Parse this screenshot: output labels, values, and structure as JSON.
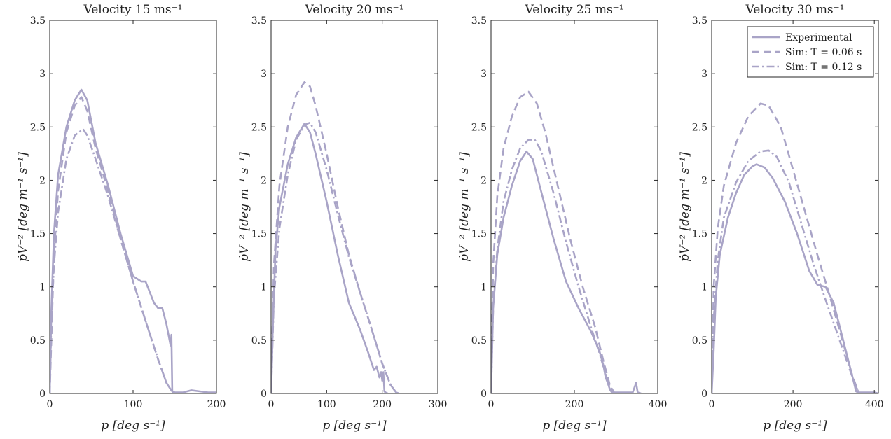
{
  "colors": {
    "series": "#a9a4c7",
    "axes": "#262626",
    "background": "#ffffff"
  },
  "legend": {
    "panel": 3,
    "location": "top-right",
    "entries": [
      {
        "label": "Experimental",
        "style": "solid"
      },
      {
        "label": "Sim: T = 0.06 s",
        "style": "dashed"
      },
      {
        "label": "Sim: T = 0.12 s",
        "style": "dashdot"
      }
    ]
  },
  "chart_data": [
    {
      "type": "line",
      "title": "Velocity 15 ms⁻¹",
      "xlabel": "p [deg s⁻¹]",
      "ylabel": "ṗV⁻² [deg m⁻¹ s⁻¹]",
      "xlim": [
        0,
        200
      ],
      "ylim": [
        0,
        3.5
      ],
      "xticks": [
        0,
        100,
        200
      ],
      "yticks": [
        0,
        0.5,
        1,
        1.5,
        2,
        2.5,
        3,
        3.5
      ],
      "grid": false,
      "series": [
        {
          "name": "Experimental",
          "style": "solid",
          "x": [
            0,
            2,
            5,
            10,
            20,
            30,
            38,
            45,
            55,
            70,
            85,
            100,
            110,
            115,
            120,
            125,
            130,
            135,
            140,
            145,
            146,
            147,
            150,
            160,
            170,
            180,
            190,
            200
          ],
          "y": [
            0,
            0.8,
            1.5,
            2.05,
            2.5,
            2.75,
            2.85,
            2.75,
            2.35,
            1.95,
            1.5,
            1.1,
            1.05,
            1.05,
            0.95,
            0.85,
            0.8,
            0.8,
            0.65,
            0.45,
            0.55,
            0.02,
            0.01,
            0.01,
            0.03,
            0.02,
            0.01,
            0.01
          ]
        },
        {
          "name": "Sim: T = 0.06 s",
          "style": "dashed",
          "x": [
            0,
            5,
            10,
            20,
            30,
            38,
            45,
            55,
            70,
            85,
            100,
            115,
            130,
            140,
            145,
            148,
            150
          ],
          "y": [
            0,
            1.3,
            1.9,
            2.45,
            2.7,
            2.78,
            2.65,
            2.3,
            1.9,
            1.45,
            1.05,
            0.68,
            0.32,
            0.1,
            0.04,
            0.01,
            0
          ]
        },
        {
          "name": "Sim: T = 0.12 s",
          "style": "dashdot",
          "x": [
            0,
            2,
            5,
            10,
            20,
            30,
            40,
            45,
            55,
            70,
            85,
            100,
            115,
            130,
            140,
            145,
            148,
            150
          ],
          "y": [
            0,
            0.7,
            1.2,
            1.7,
            2.2,
            2.42,
            2.48,
            2.42,
            2.2,
            1.85,
            1.45,
            1.05,
            0.68,
            0.32,
            0.1,
            0.04,
            0.01,
            0
          ]
        }
      ]
    },
    {
      "type": "line",
      "title": "Velocity 20 ms⁻¹",
      "xlabel": "p [deg s⁻¹]",
      "ylabel": "ṗV⁻² [deg m⁻¹ s⁻¹]",
      "xlim": [
        0,
        300
      ],
      "ylim": [
        0,
        3.5
      ],
      "xticks": [
        0,
        100,
        200,
        300
      ],
      "yticks": [
        0,
        0.5,
        1,
        1.5,
        2,
        2.5,
        3,
        3.5
      ],
      "grid": false,
      "series": [
        {
          "name": "Experimental",
          "style": "solid",
          "x": [
            0,
            3,
            8,
            15,
            30,
            45,
            60,
            70,
            80,
            100,
            120,
            140,
            160,
            175,
            185,
            190,
            195,
            198,
            200,
            202,
            204,
            206,
            210
          ],
          "y": [
            0,
            0.6,
            1.35,
            1.75,
            2.15,
            2.4,
            2.53,
            2.45,
            2.25,
            1.8,
            1.3,
            0.85,
            0.6,
            0.38,
            0.22,
            0.25,
            0.15,
            0.2,
            0.12,
            0.2,
            0.02,
            0.01,
            0
          ]
        },
        {
          "name": "Sim: T = 0.06 s",
          "style": "dashed",
          "x": [
            0,
            5,
            15,
            30,
            45,
            60,
            70,
            80,
            100,
            120,
            140,
            160,
            180,
            200,
            215,
            225,
            230
          ],
          "y": [
            0,
            1.2,
            1.95,
            2.5,
            2.8,
            2.92,
            2.88,
            2.7,
            2.25,
            1.75,
            1.3,
            0.95,
            0.62,
            0.28,
            0.08,
            0.01,
            0
          ]
        },
        {
          "name": "Sim: T = 0.12 s",
          "style": "dashdot",
          "x": [
            0,
            5,
            15,
            30,
            45,
            60,
            70,
            80,
            100,
            120,
            140,
            160,
            180,
            200,
            215,
            225,
            230
          ],
          "y": [
            0,
            0.9,
            1.55,
            2.05,
            2.38,
            2.52,
            2.54,
            2.45,
            2.1,
            1.68,
            1.28,
            0.95,
            0.62,
            0.28,
            0.08,
            0.01,
            0
          ]
        }
      ]
    },
    {
      "type": "line",
      "title": "Velocity 25 ms⁻¹",
      "xlabel": "p [deg s⁻¹]",
      "ylabel": "ṗV⁻² [deg m⁻¹ s⁻¹]",
      "xlim": [
        0,
        400
      ],
      "ylim": [
        0,
        3.5
      ],
      "xticks": [
        0,
        200,
        400
      ],
      "yticks": [
        0,
        0.5,
        1,
        1.5,
        2,
        2.5,
        3,
        3.5
      ],
      "grid": false,
      "series": [
        {
          "name": "Experimental",
          "style": "solid",
          "x": [
            0,
            5,
            15,
            30,
            50,
            70,
            85,
            100,
            120,
            150,
            180,
            210,
            240,
            260,
            270,
            275,
            280,
            285,
            290,
            300,
            340,
            348,
            352,
            360
          ],
          "y": [
            0,
            0.8,
            1.3,
            1.65,
            1.95,
            2.18,
            2.27,
            2.2,
            1.9,
            1.45,
            1.05,
            0.8,
            0.58,
            0.4,
            0.26,
            0.15,
            0.1,
            0.04,
            0.01,
            0.01,
            0.01,
            0.1,
            0.01,
            0
          ]
        },
        {
          "name": "Sim: T = 0.06 s",
          "style": "dashed",
          "x": [
            0,
            5,
            15,
            30,
            50,
            70,
            90,
            110,
            130,
            160,
            190,
            220,
            250,
            270,
            285,
            295,
            300
          ],
          "y": [
            0,
            1.2,
            1.85,
            2.3,
            2.6,
            2.78,
            2.83,
            2.72,
            2.45,
            1.95,
            1.45,
            1.0,
            0.62,
            0.3,
            0.08,
            0.01,
            0
          ]
        },
        {
          "name": "Sim: T = 0.12 s",
          "style": "dashdot",
          "x": [
            0,
            5,
            15,
            30,
            50,
            70,
            90,
            105,
            120,
            150,
            180,
            210,
            240,
            260,
            275,
            285,
            295,
            300
          ],
          "y": [
            0,
            0.8,
            1.35,
            1.8,
            2.1,
            2.3,
            2.38,
            2.38,
            2.28,
            1.88,
            1.42,
            1.0,
            0.62,
            0.38,
            0.18,
            0.06,
            0.01,
            0
          ]
        }
      ]
    },
    {
      "type": "line",
      "title": "Velocity 30 ms⁻¹",
      "xlabel": "p [deg s⁻¹]",
      "ylabel": "ṗV⁻² [deg m⁻¹ s⁻¹]",
      "xlim": [
        0,
        410
      ],
      "ylim": [
        0,
        3.5
      ],
      "xticks": [
        0,
        200,
        400
      ],
      "yticks": [
        0,
        0.5,
        1,
        1.5,
        2,
        2.5,
        3,
        3.5
      ],
      "grid": false,
      "series": [
        {
          "name": "Experimental",
          "style": "solid",
          "x": [
            0,
            5,
            10,
            20,
            40,
            60,
            80,
            100,
            110,
            130,
            150,
            180,
            210,
            240,
            260,
            280,
            300,
            320,
            340,
            350,
            355,
            360,
            380,
            400,
            410
          ],
          "y": [
            0,
            0.4,
            0.9,
            1.3,
            1.65,
            1.88,
            2.05,
            2.13,
            2.15,
            2.12,
            2.02,
            1.8,
            1.5,
            1.15,
            1.02,
            1.0,
            0.85,
            0.55,
            0.25,
            0.1,
            0.02,
            0.01,
            0.01,
            0.01,
            0
          ]
        },
        {
          "name": "Sim: T = 0.06 s",
          "style": "dashed",
          "x": [
            0,
            5,
            15,
            30,
            60,
            90,
            120,
            140,
            170,
            200,
            230,
            260,
            290,
            320,
            345,
            360,
            365
          ],
          "y": [
            0,
            1.0,
            1.55,
            1.95,
            2.35,
            2.6,
            2.72,
            2.7,
            2.5,
            2.1,
            1.7,
            1.3,
            0.92,
            0.52,
            0.18,
            0.02,
            0
          ]
        },
        {
          "name": "Sim: T = 0.12 s",
          "style": "dashdot",
          "x": [
            0,
            5,
            15,
            30,
            60,
            90,
            120,
            140,
            160,
            190,
            220,
            250,
            280,
            310,
            340,
            355,
            365
          ],
          "y": [
            0,
            0.7,
            1.25,
            1.65,
            1.98,
            2.18,
            2.27,
            2.28,
            2.22,
            1.98,
            1.6,
            1.22,
            0.88,
            0.55,
            0.22,
            0.06,
            0
          ]
        }
      ]
    }
  ]
}
